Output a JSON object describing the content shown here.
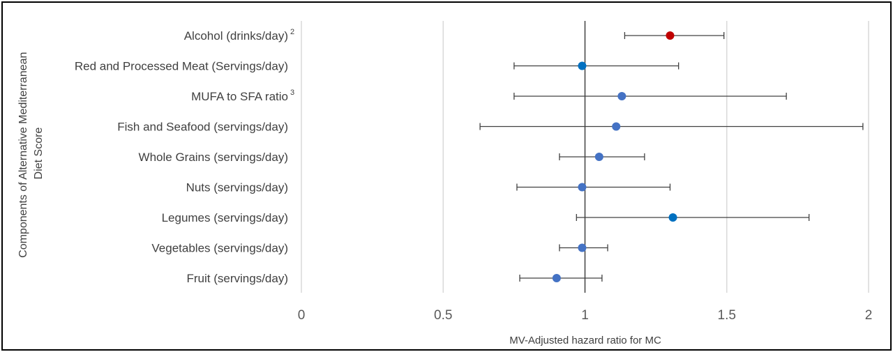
{
  "chart_data": {
    "type": "scatter",
    "subtype": "forest-plot",
    "xlabel": "MV-Adjusted hazard ratio for MC",
    "ylabel_line1": "Components of Alternative Mediterranean",
    "ylabel_line2": "Diet Score",
    "xlim": [
      0,
      2
    ],
    "x_ticks": [
      "0",
      "0.5",
      "1",
      "1.5",
      "2"
    ],
    "x_tick_values": [
      0,
      0.5,
      1,
      1.5,
      2
    ],
    "reference_line": 1,
    "grid": "vertical",
    "categories": [
      {
        "label": "Alcohol (drinks/day)",
        "superscript": "2",
        "estimate": 1.3,
        "lower": 1.14,
        "upper": 1.49,
        "color": "#c00000"
      },
      {
        "label": "Red and Processed Meat (Servings/day)",
        "superscript": "",
        "estimate": 0.99,
        "lower": 0.75,
        "upper": 1.33,
        "color": "#0070c0"
      },
      {
        "label": "MUFA to SFA ratio",
        "superscript": "3",
        "estimate": 1.13,
        "lower": 0.75,
        "upper": 1.71,
        "color": "#4472c4"
      },
      {
        "label": "Fish and Seafood (servings/day)",
        "superscript": "",
        "estimate": 1.11,
        "lower": 0.63,
        "upper": 1.98,
        "color": "#4472c4"
      },
      {
        "label": "Whole Grains (servings/day)",
        "superscript": "",
        "estimate": 1.05,
        "lower": 0.91,
        "upper": 1.21,
        "color": "#4472c4"
      },
      {
        "label": "Nuts (servings/day)",
        "superscript": "",
        "estimate": 0.99,
        "lower": 0.76,
        "upper": 1.3,
        "color": "#4472c4"
      },
      {
        "label": "Legumes (servings/day)",
        "superscript": "",
        "estimate": 1.31,
        "lower": 0.97,
        "upper": 1.79,
        "color": "#0070c0"
      },
      {
        "label": "Vegetables (servings/day)",
        "superscript": "",
        "estimate": 0.99,
        "lower": 0.91,
        "upper": 1.08,
        "color": "#4472c4"
      },
      {
        "label": "Fruit (servings/day)",
        "superscript": "",
        "estimate": 0.9,
        "lower": 0.77,
        "upper": 1.06,
        "color": "#4472c4"
      }
    ]
  }
}
